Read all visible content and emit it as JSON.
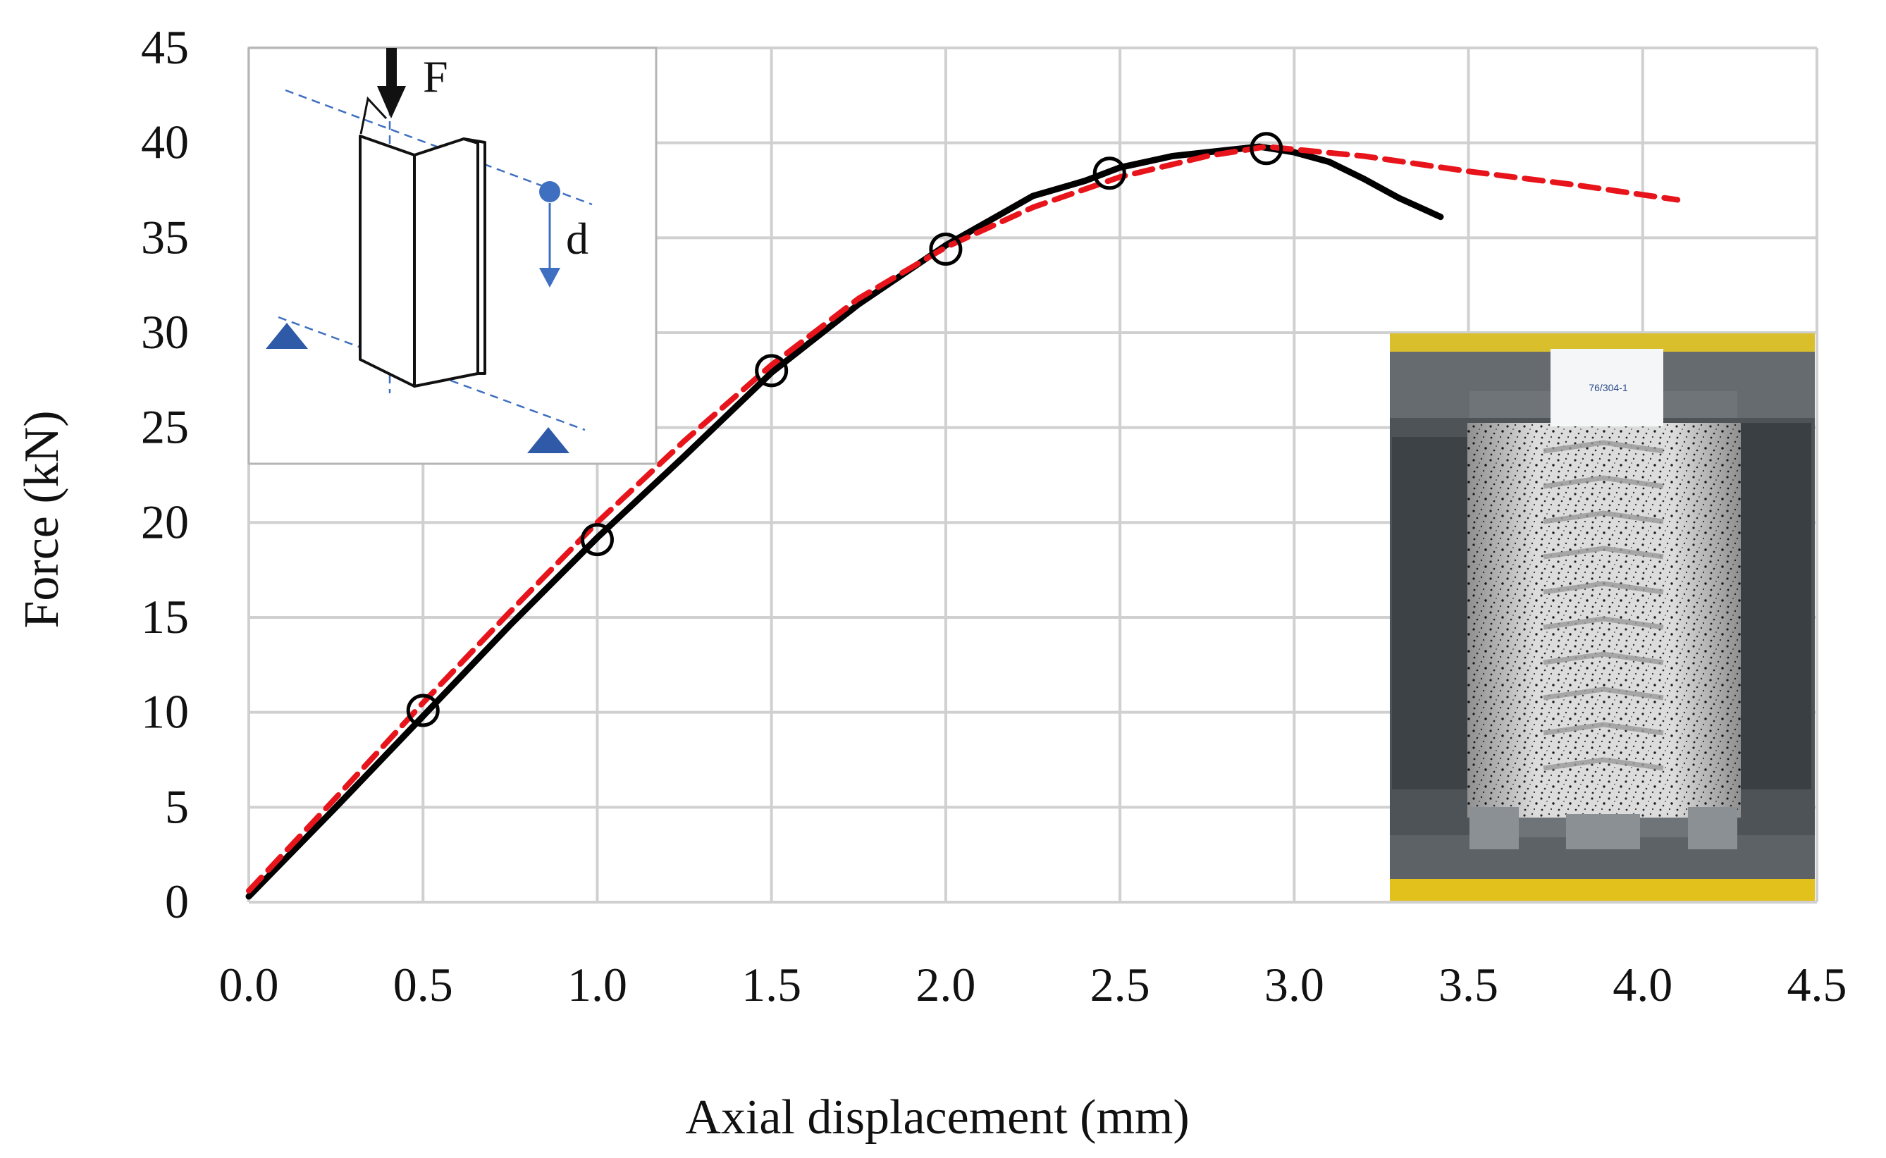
{
  "chart_data": {
    "type": "line",
    "title": "",
    "xlabel": "Axial displacement (mm)",
    "ylabel": "Force (kN)",
    "xlim": [
      0,
      4.5
    ],
    "ylim": [
      0,
      45
    ],
    "x_ticks": [
      "0.0",
      "0.5",
      "1.0",
      "1.5",
      "2.0",
      "2.5",
      "3.0",
      "3.5",
      "4.0",
      "4.5"
    ],
    "y_ticks": [
      "0",
      "5",
      "10",
      "15",
      "20",
      "25",
      "30",
      "35",
      "40",
      "45"
    ],
    "grid": true,
    "legend": "none",
    "series": [
      {
        "color": "#000000",
        "style": "solid",
        "x": [
          0.0,
          0.25,
          0.5,
          0.75,
          1.0,
          1.25,
          1.5,
          1.75,
          2.0,
          2.25,
          2.4,
          2.5,
          2.65,
          2.8,
          2.9,
          3.0,
          3.1,
          3.2,
          3.3,
          3.42
        ],
        "y": [
          0.3,
          5.0,
          9.8,
          14.6,
          19.2,
          23.5,
          27.9,
          31.5,
          34.6,
          37.2,
          38.0,
          38.7,
          39.3,
          39.6,
          39.8,
          39.5,
          39.0,
          38.1,
          37.1,
          36.1
        ]
      },
      {
        "color": "#e8141b",
        "style": "dashed",
        "x": [
          0.0,
          0.25,
          0.5,
          0.75,
          1.0,
          1.25,
          1.5,
          1.75,
          2.0,
          2.25,
          2.5,
          2.75,
          2.92,
          3.2,
          3.5,
          3.8,
          4.1
        ],
        "y": [
          0.6,
          5.5,
          10.5,
          15.3,
          20.0,
          24.3,
          28.3,
          31.8,
          34.5,
          36.6,
          38.2,
          39.3,
          39.8,
          39.3,
          38.5,
          37.8,
          37.0
        ]
      },
      {
        "color": "#000000",
        "style": "markers",
        "marker": "open-circle",
        "x": [
          0.5,
          1.0,
          1.5,
          2.0,
          2.47,
          2.92
        ],
        "y": [
          10.1,
          19.1,
          28.0,
          34.4,
          38.4,
          39.7
        ]
      }
    ]
  },
  "inset_diagram": {
    "force_label": "F",
    "displacement_label": "d",
    "accent_color": "#3f6fc0",
    "support_color": "#2f5aa8"
  },
  "photo": {
    "sign_text": "76/304-1"
  }
}
